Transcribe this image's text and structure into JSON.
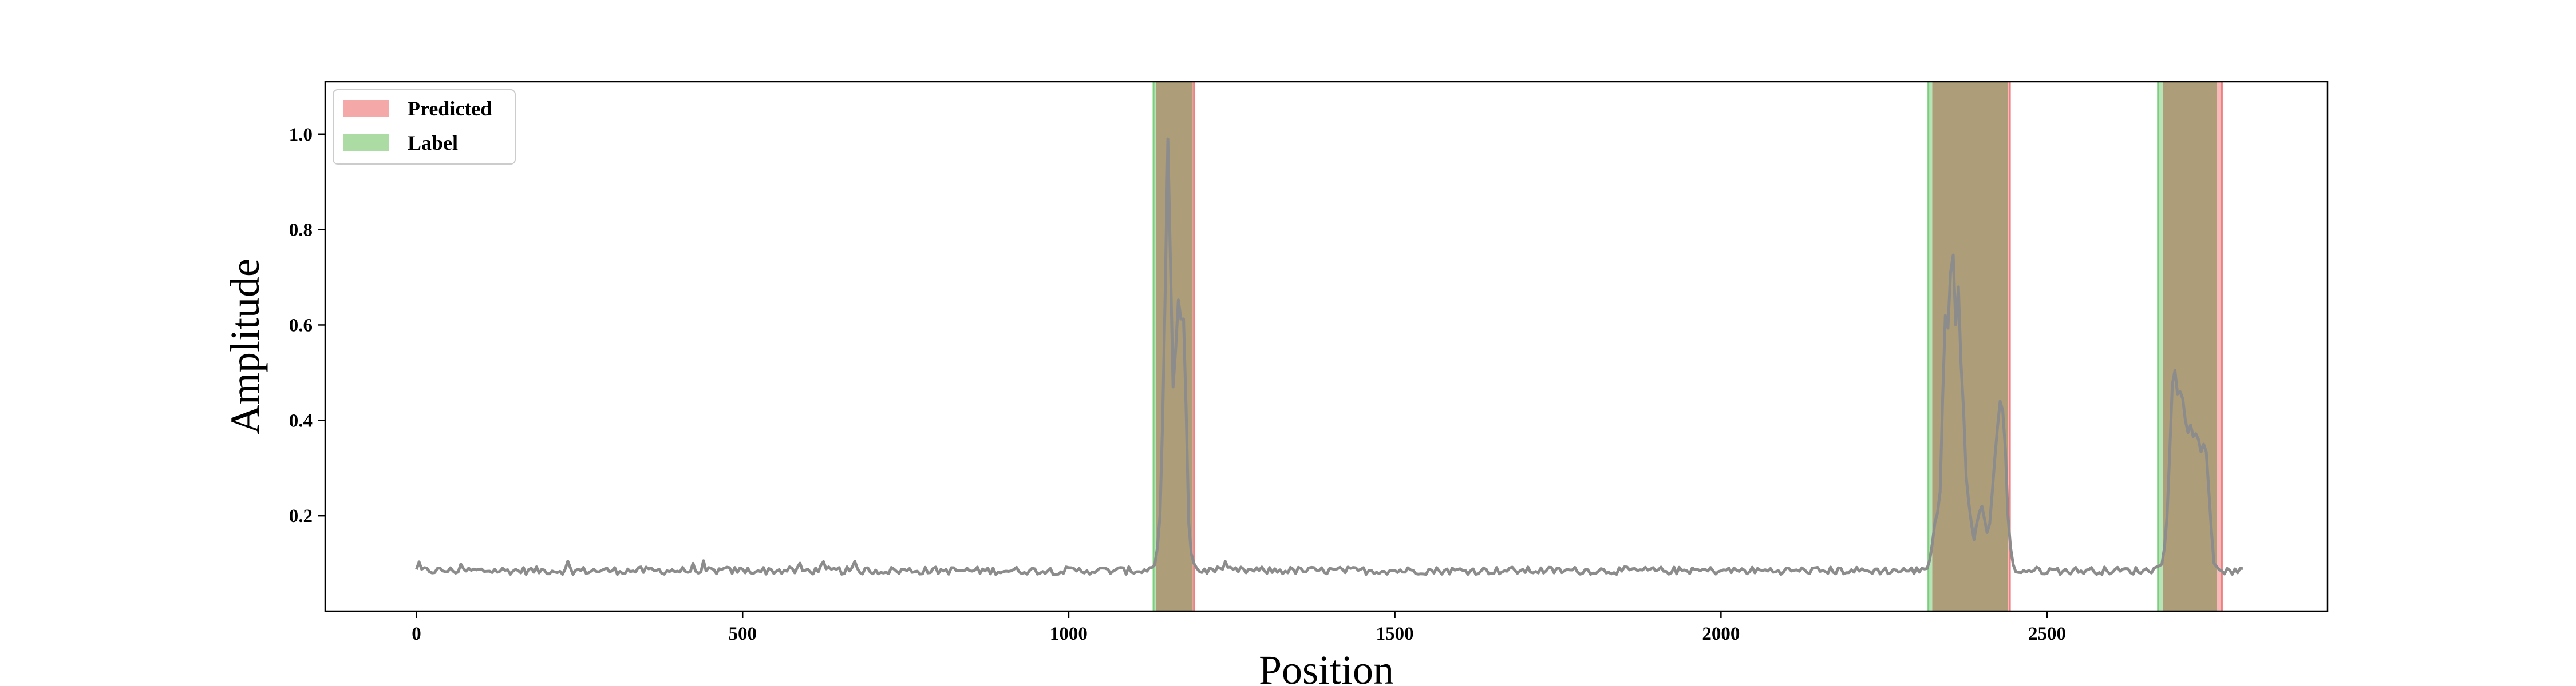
{
  "chart_data": {
    "type": "line",
    "xlabel": "Position",
    "ylabel": "Amplitude",
    "xlim": [
      -140,
      2930
    ],
    "ylim": [
      0.0,
      1.11
    ],
    "xticks": [
      0,
      500,
      1000,
      1500,
      2000,
      2500
    ],
    "xtick_labels": [
      "0",
      "500",
      "1000",
      "1500",
      "2000",
      "2500"
    ],
    "yticks": [
      0.2,
      0.4,
      0.6,
      0.8,
      1.0
    ],
    "ytick_labels": [
      "0.2",
      "0.4",
      "0.6",
      "0.8",
      "1.0"
    ],
    "grid": false,
    "legend": {
      "position": "top-left",
      "entries": [
        {
          "label": "Predicted",
          "color": "#f4a9a8"
        },
        {
          "label": "Label",
          "color": "#acdca3"
        }
      ]
    },
    "colors": {
      "signal": "#8c8c8c",
      "predicted": "#f08080",
      "label": "#7ccd7c",
      "overlap": "#ad9d78"
    },
    "predicted_regions": [
      [
        1134,
        1192
      ],
      [
        2324,
        2443
      ],
      [
        2678,
        2768
      ]
    ],
    "label_regions": [
      [
        1130,
        1190
      ],
      [
        2318,
        2440
      ],
      [
        2670,
        2760
      ]
    ],
    "baseline": {
      "x_start": 0,
      "x_end": 2800,
      "mean": 0.085,
      "noise": 0.008
    },
    "signal_keypoints": [
      [
        0,
        0.095
      ],
      [
        1100,
        0.085
      ],
      [
        1128,
        0.092
      ],
      [
        1134,
        0.1
      ],
      [
        1140,
        0.2
      ],
      [
        1146,
        0.5
      ],
      [
        1150,
        0.85
      ],
      [
        1153,
        1.06
      ],
      [
        1157,
        0.62
      ],
      [
        1160,
        0.47
      ],
      [
        1164,
        0.55
      ],
      [
        1167,
        0.67
      ],
      [
        1171,
        0.6
      ],
      [
        1175,
        0.65
      ],
      [
        1179,
        0.5
      ],
      [
        1183,
        0.2
      ],
      [
        1188,
        0.12
      ],
      [
        1194,
        0.09
      ],
      [
        1210,
        0.095
      ],
      [
        2300,
        0.085
      ],
      [
        2318,
        0.09
      ],
      [
        2325,
        0.15
      ],
      [
        2330,
        0.21
      ],
      [
        2335,
        0.2
      ],
      [
        2340,
        0.45
      ],
      [
        2344,
        0.62
      ],
      [
        2347,
        0.58
      ],
      [
        2350,
        0.62
      ],
      [
        2354,
        0.8
      ],
      [
        2357,
        0.72
      ],
      [
        2360,
        0.6
      ],
      [
        2364,
        0.68
      ],
      [
        2368,
        0.52
      ],
      [
        2372,
        0.42
      ],
      [
        2376,
        0.28
      ],
      [
        2382,
        0.2
      ],
      [
        2388,
        0.15
      ],
      [
        2394,
        0.2
      ],
      [
        2400,
        0.22
      ],
      [
        2406,
        0.18
      ],
      [
        2410,
        0.15
      ],
      [
        2416,
        0.25
      ],
      [
        2422,
        0.36
      ],
      [
        2428,
        0.44
      ],
      [
        2434,
        0.41
      ],
      [
        2440,
        0.2
      ],
      [
        2446,
        0.1
      ],
      [
        2460,
        0.085
      ],
      [
        2655,
        0.085
      ],
      [
        2672,
        0.095
      ],
      [
        2678,
        0.1
      ],
      [
        2684,
        0.2
      ],
      [
        2690,
        0.4
      ],
      [
        2694,
        0.55
      ],
      [
        2698,
        0.46
      ],
      [
        2702,
        0.45
      ],
      [
        2706,
        0.47
      ],
      [
        2710,
        0.42
      ],
      [
        2715,
        0.37
      ],
      [
        2720,
        0.39
      ],
      [
        2725,
        0.36
      ],
      [
        2730,
        0.38
      ],
      [
        2735,
        0.33
      ],
      [
        2740,
        0.35
      ],
      [
        2745,
        0.33
      ],
      [
        2750,
        0.2
      ],
      [
        2756,
        0.1
      ],
      [
        2765,
        0.085
      ],
      [
        2800,
        0.078
      ]
    ]
  }
}
